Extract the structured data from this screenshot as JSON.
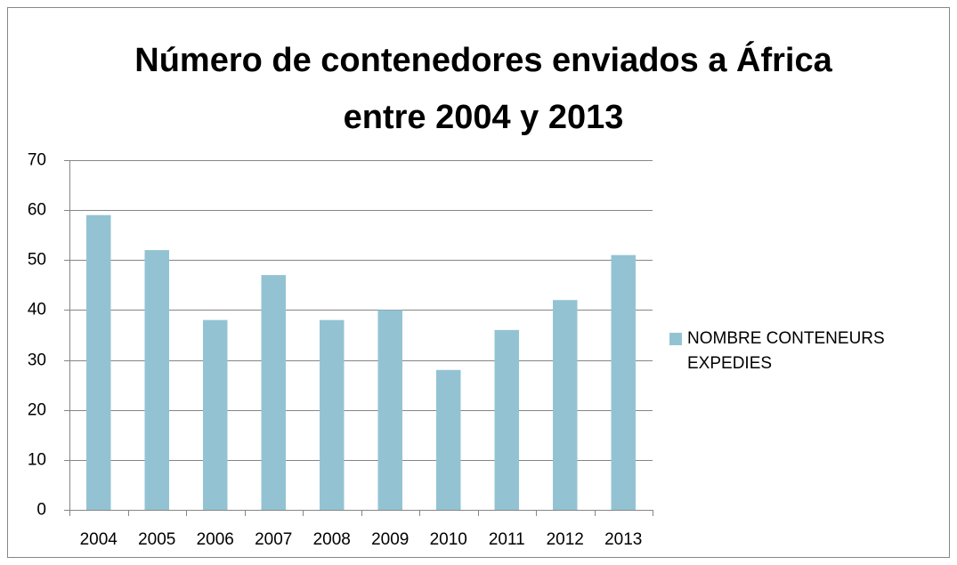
{
  "chart_data": {
    "type": "bar",
    "title": "Número de contenedores enviados a África entre 2004 y 2013",
    "categories": [
      "2004",
      "2005",
      "2006",
      "2007",
      "2008",
      "2009",
      "2010",
      "2011",
      "2012",
      "2013"
    ],
    "series": [
      {
        "name": "NOMBRE CONTENEURS EXPEDIES",
        "color": "#93c3d3",
        "values": [
          59,
          52,
          38,
          47,
          38,
          40,
          28,
          36,
          42,
          51
        ]
      }
    ],
    "ylim": [
      0,
      70
    ],
    "yticks": [
      0,
      10,
      20,
      30,
      40,
      50,
      60,
      70
    ],
    "grid": true,
    "legend": "right"
  }
}
